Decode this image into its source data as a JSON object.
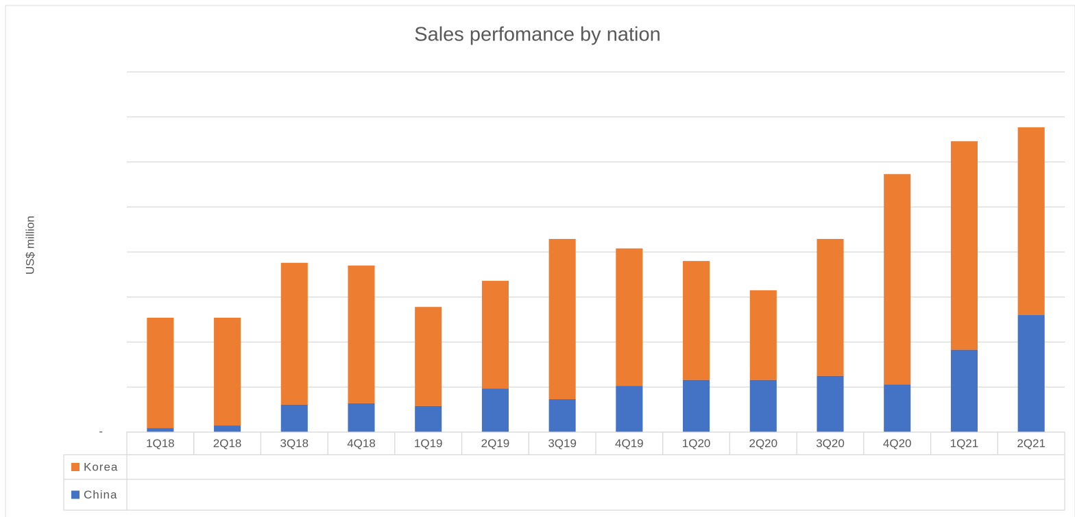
{
  "chart_data": {
    "type": "stacked_bar",
    "title": "Sales perfomance by nation",
    "y_label": "US$ million",
    "categories": [
      "1Q18",
      "2Q18",
      "3Q18",
      "4Q18",
      "1Q19",
      "2Q19",
      "3Q19",
      "4Q19",
      "1Q20",
      "2Q20",
      "3Q20",
      "4Q20",
      "1Q21",
      "2Q21"
    ],
    "series": [
      {
        "name": "China",
        "color": "#4472c4",
        "values": [
          0.09,
          0.15,
          0.61,
          0.64,
          0.58,
          0.97,
          0.73,
          1.03,
          1.16,
          1.16,
          1.25,
          1.06,
          1.83,
          2.6
        ]
      },
      {
        "name": "Korea",
        "color": "#ed7d31",
        "values": [
          2.45,
          2.39,
          3.15,
          3.06,
          2.2,
          2.39,
          3.56,
          3.05,
          2.64,
          1.99,
          3.04,
          4.67,
          4.63,
          4.17
        ]
      }
    ],
    "ylim": [
      0,
      8
    ],
    "yticks": [
      {
        "value": 0,
        "label": "-"
      }
    ],
    "ygrid": [
      1,
      2,
      3,
      4,
      5,
      6,
      7,
      8
    ],
    "grid": true,
    "data_table": true
  }
}
